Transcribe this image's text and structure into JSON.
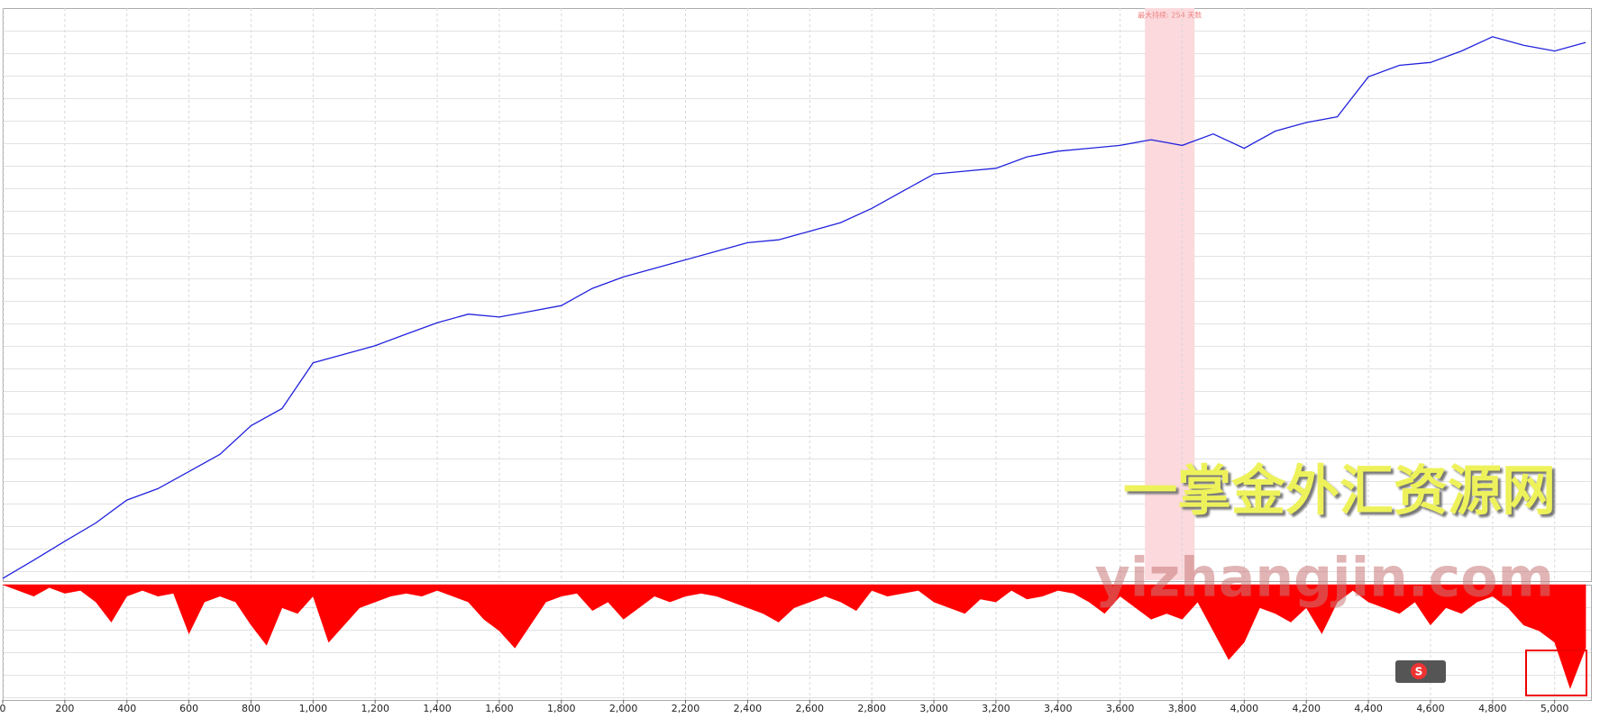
{
  "chart_data": [
    {
      "type": "line",
      "x": [
        0,
        100,
        200,
        300,
        400,
        500,
        600,
        700,
        800,
        900,
        1000,
        1100,
        1200,
        1300,
        1400,
        1500,
        1600,
        1700,
        1800,
        1900,
        2000,
        2100,
        2200,
        2300,
        2400,
        2500,
        2600,
        2700,
        2800,
        2900,
        3000,
        3100,
        3200,
        3300,
        3400,
        3500,
        3600,
        3700,
        3800,
        3900,
        4000,
        4100,
        4200,
        4300,
        4400,
        4500,
        4600,
        4700,
        4800,
        4900,
        5000,
        5100
      ],
      "series": [
        {
          "color": "#2222dd",
          "values": [
            0.3,
            3.5,
            6.8,
            10,
            14,
            16,
            19,
            22,
            27,
            30,
            38,
            39.5,
            41,
            43,
            45,
            46.5,
            46,
            47,
            48,
            51,
            53,
            54.5,
            56,
            57.5,
            59,
            59.5,
            61,
            62.5,
            65,
            68,
            71,
            71.5,
            72,
            74,
            75,
            75.5,
            76,
            77,
            76,
            78,
            75.5,
            78.5,
            80,
            81,
            88,
            90,
            90.5,
            92.5,
            95,
            93.5,
            92.5,
            94
          ]
        }
      ],
      "highlight": {
        "x": [
          3680,
          3840
        ],
        "label": "最大持续: 254 天数",
        "color": "#fbd9dc"
      },
      "xlim": [
        0,
        5120
      ],
      "ylim": [
        0,
        100
      ],
      "grid": true
    },
    {
      "type": "area",
      "x": [
        0,
        50,
        100,
        150,
        200,
        250,
        300,
        350,
        400,
        450,
        500,
        550,
        600,
        650,
        700,
        750,
        800,
        850,
        900,
        950,
        1000,
        1050,
        1100,
        1150,
        1200,
        1250,
        1300,
        1350,
        1400,
        1450,
        1500,
        1550,
        1600,
        1650,
        1700,
        1750,
        1800,
        1850,
        1900,
        1950,
        2000,
        2050,
        2100,
        2150,
        2200,
        2250,
        2300,
        2350,
        2400,
        2450,
        2500,
        2550,
        2600,
        2650,
        2700,
        2750,
        2800,
        2850,
        2900,
        2950,
        3000,
        3050,
        3100,
        3150,
        3200,
        3250,
        3300,
        3350,
        3400,
        3450,
        3500,
        3550,
        3600,
        3650,
        3700,
        3750,
        3800,
        3850,
        3900,
        3950,
        4000,
        4050,
        4100,
        4150,
        4200,
        4250,
        4300,
        4350,
        4400,
        4450,
        4500,
        4550,
        4600,
        4650,
        4700,
        4750,
        4800,
        4850,
        4900,
        4950,
        5000,
        5050,
        5100
      ],
      "series": [
        {
          "color": "#ff0000",
          "values": [
            0,
            -1,
            -2,
            -0.5,
            -1.5,
            -1,
            -3,
            -6.5,
            -2,
            -1,
            -2,
            -1.5,
            -8.5,
            -3,
            -2,
            -3,
            -7,
            -10.5,
            -4,
            -5,
            -2,
            -10,
            -7,
            -4,
            -3,
            -2,
            -1.5,
            -2,
            -1,
            -2,
            -3,
            -6,
            -8,
            -11,
            -7,
            -3,
            -2,
            -1.5,
            -4.5,
            -3,
            -6,
            -4,
            -2,
            -3,
            -2,
            -1.5,
            -2,
            -3,
            -4,
            -5,
            -6.5,
            -4,
            -3,
            -2,
            -3,
            -4.5,
            -1,
            -2,
            -1.5,
            -1,
            -3,
            -4,
            -5,
            -2.5,
            -3,
            -1,
            -2.5,
            -2,
            -1,
            -1.5,
            -3,
            -5,
            -2,
            -4,
            -6,
            -5,
            -6,
            -3,
            -8,
            -13,
            -10,
            -4,
            -5,
            -6.5,
            -4,
            -8.5,
            -3,
            -1,
            -3,
            -4,
            -5,
            -3,
            -7,
            -4,
            -5,
            -3,
            -2,
            -4,
            -7,
            -8,
            -10,
            -18,
            -11
          ]
        }
      ],
      "xlim": [
        0,
        5120
      ],
      "ylim": [
        -20,
        0
      ],
      "xticks": [
        0,
        200,
        400,
        600,
        800,
        {
          "value": 1000,
          "label": "1,000"
        },
        {
          "value": 1200,
          "label": "1,200"
        },
        {
          "value": 1400,
          "label": "1,400"
        },
        {
          "value": 1600,
          "label": "1,600"
        },
        {
          "value": 1800,
          "label": "1,800"
        },
        {
          "value": 2000,
          "label": "2,000"
        },
        {
          "value": 2200,
          "label": "2,200"
        },
        {
          "value": 2400,
          "label": "2,400"
        },
        {
          "value": 2600,
          "label": "2,600"
        },
        {
          "value": 2800,
          "label": "2,800"
        },
        {
          "value": 3000,
          "label": "3,000"
        },
        {
          "value": 3200,
          "label": "3,200"
        },
        {
          "value": 3400,
          "label": "3,400"
        },
        {
          "value": 3600,
          "label": "3,600"
        },
        {
          "value": 3800,
          "label": "3,800"
        },
        {
          "value": 4000,
          "label": "4,000"
        },
        {
          "value": 4200,
          "label": "4,200"
        },
        {
          "value": 4400,
          "label": "4,400"
        },
        {
          "value": 4600,
          "label": "4,600"
        },
        {
          "value": 4800,
          "label": "4,800"
        },
        {
          "value": 5000,
          "label": "5,000"
        }
      ]
    }
  ],
  "watermark": [
    "一掌金外汇资源网",
    "yizhangjin.com"
  ]
}
